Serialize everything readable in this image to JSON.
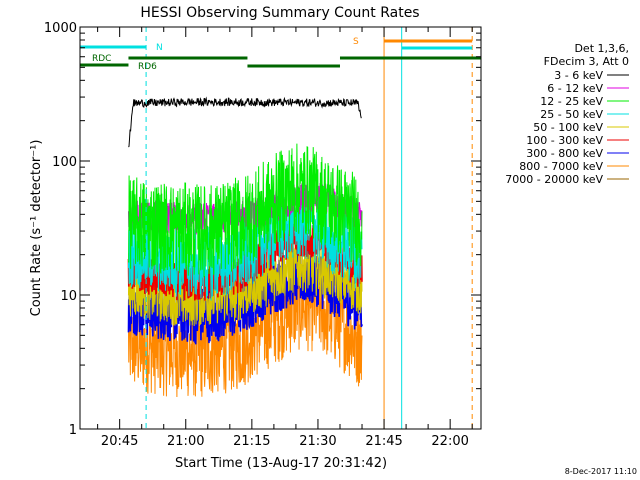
{
  "chart_data": {
    "type": "line",
    "title": "HESSI Observing Summary Count Rates",
    "xlabel": "Start Time (13-Aug-17 20:31:42)",
    "ylabel": "Count Rate (s⁻¹ detector⁻¹)",
    "y_scale": "log",
    "ylim": [
      1,
      1000
    ],
    "xlim": [
      "20:36",
      "22:07"
    ],
    "grid": false,
    "x_ticks": [
      "20:45",
      "21:00",
      "21:15",
      "21:30",
      "21:45",
      "22:00"
    ],
    "y_ticks": [
      "1",
      "10",
      "100",
      "1000"
    ],
    "legend": {
      "placement": "right",
      "header": [
        "Det 1,3,6,",
        "FDecim 3, Att 0"
      ]
    },
    "series": [
      {
        "name": "3 - 6 keV",
        "color": "#000000",
        "x": [
          "20:47",
          "20:48",
          "21:00",
          "21:15",
          "21:30",
          "21:39",
          "21:40"
        ],
        "y": [
          120,
          270,
          275,
          275,
          272,
          270,
          200
        ]
      },
      {
        "name": "6 - 12 keV",
        "color": "#e000e0",
        "x": [
          "20:47",
          "21:00",
          "21:10",
          "21:18",
          "21:24",
          "21:30",
          "21:36",
          "21:40"
        ],
        "y": [
          40,
          37,
          38,
          42,
          52,
          55,
          45,
          40
        ]
      },
      {
        "name": "12 - 25 keV",
        "color": "#00ee00",
        "x": [
          "20:47",
          "20:55",
          "21:05",
          "21:12",
          "21:18",
          "21:24",
          "21:28",
          "21:34",
          "21:40"
        ],
        "y": [
          35,
          32,
          30,
          34,
          45,
          62,
          60,
          45,
          35
        ]
      },
      {
        "name": "25 - 50 keV",
        "color": "#00e0e0",
        "x": [
          "20:47",
          "20:55",
          "21:05",
          "21:12",
          "21:18",
          "21:24",
          "21:28",
          "21:34",
          "21:40"
        ],
        "y": [
          22,
          19,
          17,
          19,
          27,
          35,
          34,
          26,
          20
        ]
      },
      {
        "name": "50 - 100 keV",
        "color": "#d8c800",
        "x": [
          "20:47",
          "21:00",
          "21:12",
          "21:20",
          "21:26",
          "21:34",
          "21:40"
        ],
        "y": [
          11,
          9,
          10,
          14,
          17,
          14,
          11
        ]
      },
      {
        "name": "100 - 300 keV",
        "color": "#ee0000",
        "x": [
          "20:47",
          "20:55",
          "21:03",
          "21:12",
          "21:18",
          "21:25",
          "21:30",
          "21:36",
          "21:40"
        ],
        "y": [
          15,
          13,
          12,
          14,
          20,
          27,
          26,
          18,
          15
        ]
      },
      {
        "name": "300 - 800 keV",
        "color": "#0000ee",
        "x": [
          "20:47",
          "20:55",
          "21:03",
          "21:12",
          "21:18",
          "21:25",
          "21:30",
          "21:36",
          "21:40"
        ],
        "y": [
          8.5,
          7.5,
          7,
          8,
          11,
          14,
          13.5,
          10,
          8.5
        ]
      },
      {
        "name": "800 - 7000 keV",
        "color": "#ff8800",
        "x": [
          "20:47",
          "20:55",
          "21:03",
          "21:12",
          "21:18",
          "21:25",
          "21:30",
          "21:36",
          "21:40"
        ],
        "y": [
          4.3,
          3.9,
          3.7,
          4.3,
          6,
          8.5,
          8.3,
          5.8,
          4.3
        ]
      },
      {
        "name": "7000 - 20000 keV",
        "color": "#996600",
        "x": [],
        "y": []
      }
    ],
    "flags": [
      {
        "label": "RDC",
        "color": "#006600",
        "segments": [
          [
            "20:36",
            "20:47"
          ]
        ]
      },
      {
        "label": "RD6",
        "color": "#006600",
        "segments": [
          [
            "20:47",
            "21:14"
          ],
          [
            "21:14",
            "21:35"
          ],
          [
            "21:35",
            "22:07"
          ]
        ]
      },
      {
        "label": "N",
        "color": "#00e0e0",
        "segments": [
          [
            "20:36",
            "20:51"
          ],
          [
            "21:49",
            "22:05"
          ]
        ]
      },
      {
        "label": "S",
        "color": "#ff8800",
        "segments": [
          [
            "21:45",
            "22:05"
          ]
        ]
      }
    ],
    "vlines": [
      {
        "x": "20:36",
        "color": "#00e0e0",
        "style": "solid"
      },
      {
        "x": "20:51",
        "color": "#00e0e0",
        "style": "dashed"
      },
      {
        "x": "21:45",
        "color": "#ff8800",
        "style": "solid"
      },
      {
        "x": "21:49",
        "color": "#00e0e0",
        "style": "solid"
      },
      {
        "x": "22:05",
        "color": "#ff8800",
        "style": "dashed"
      }
    ]
  },
  "footer": {
    "timestamp": "8-Dec-2017 11:10"
  }
}
